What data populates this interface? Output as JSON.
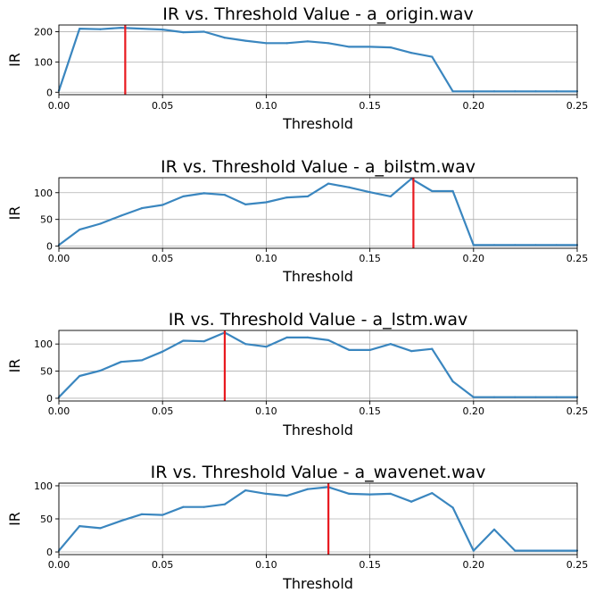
{
  "chart_data": [
    {
      "type": "line",
      "title": "IR vs. Threshold Value - a_origin.wav",
      "xlabel": "Threshold",
      "ylabel": "IR",
      "xlim": [
        0,
        0.25
      ],
      "ylim": [
        -8,
        222
      ],
      "xticks": [
        0.0,
        0.05,
        0.1,
        0.15,
        0.2,
        0.25
      ],
      "xtick_labels": [
        "0.00",
        "0.05",
        "0.10",
        "0.15",
        "0.20",
        "0.25"
      ],
      "yticks": [
        0,
        100,
        200
      ],
      "ytick_labels": [
        "0",
        "100",
        "200"
      ],
      "grid": true,
      "line_color": "#3a86bf",
      "marker_color": "#e8191f",
      "marker_x": 0.032,
      "x": [
        0,
        0.01,
        0.02,
        0.03,
        0.04,
        0.05,
        0.06,
        0.07,
        0.08,
        0.09,
        0.1,
        0.11,
        0.12,
        0.13,
        0.14,
        0.15,
        0.16,
        0.17,
        0.18,
        0.19,
        0.2,
        0.21,
        0.22,
        0.23,
        0.24,
        0.25
      ],
      "y": [
        5,
        210,
        208,
        213,
        210,
        207,
        198,
        200,
        180,
        170,
        162,
        162,
        168,
        162,
        150,
        150,
        148,
        130,
        117,
        3,
        3,
        3,
        3,
        3,
        3,
        3
      ]
    },
    {
      "type": "line",
      "title": "IR vs. Threshold Value - a_bilstm.wav",
      "xlabel": "Threshold",
      "ylabel": "IR",
      "xlim": [
        0,
        0.25
      ],
      "ylim": [
        -4,
        128
      ],
      "xticks": [
        0.0,
        0.05,
        0.1,
        0.15,
        0.2,
        0.25
      ],
      "xtick_labels": [
        "0.00",
        "0.05",
        "0.10",
        "0.15",
        "0.20",
        "0.25"
      ],
      "yticks": [
        0,
        50,
        100
      ],
      "ytick_labels": [
        "0",
        "50",
        "100"
      ],
      "grid": true,
      "line_color": "#3a86bf",
      "marker_color": "#e8191f",
      "marker_x": 0.171,
      "x": [
        0,
        0.01,
        0.02,
        0.03,
        0.04,
        0.05,
        0.06,
        0.07,
        0.08,
        0.09,
        0.1,
        0.11,
        0.12,
        0.13,
        0.14,
        0.15,
        0.16,
        0.17,
        0.18,
        0.19,
        0.2,
        0.21,
        0.22,
        0.23,
        0.24,
        0.25
      ],
      "y": [
        2,
        31,
        42,
        57,
        71,
        77,
        93,
        99,
        96,
        78,
        82,
        91,
        93,
        117,
        110,
        101,
        93,
        126,
        103,
        103,
        2,
        2,
        2,
        2,
        2,
        2
      ]
    },
    {
      "type": "line",
      "title": "IR vs. Threshold Value - a_lstm.wav",
      "xlabel": "Threshold",
      "ylabel": "IR",
      "xlim": [
        0,
        0.25
      ],
      "ylim": [
        -5,
        125
      ],
      "xticks": [
        0.0,
        0.05,
        0.1,
        0.15,
        0.2,
        0.25
      ],
      "xtick_labels": [
        "0.00",
        "0.05",
        "0.10",
        "0.15",
        "0.20",
        "0.25"
      ],
      "yticks": [
        0,
        50,
        100
      ],
      "ytick_labels": [
        "0",
        "50",
        "100"
      ],
      "grid": true,
      "line_color": "#3a86bf",
      "marker_color": "#e8191f",
      "marker_x": 0.08,
      "x": [
        0,
        0.01,
        0.02,
        0.03,
        0.04,
        0.05,
        0.06,
        0.07,
        0.08,
        0.09,
        0.1,
        0.11,
        0.12,
        0.13,
        0.14,
        0.15,
        0.16,
        0.17,
        0.18,
        0.19,
        0.2,
        0.21,
        0.22,
        0.23,
        0.24,
        0.25
      ],
      "y": [
        2,
        41,
        51,
        67,
        70,
        86,
        106,
        105,
        121,
        100,
        95,
        112,
        112,
        107,
        89,
        89,
        100,
        87,
        91,
        31,
        2,
        2,
        2,
        2,
        2,
        2
      ]
    },
    {
      "type": "line",
      "title": "IR vs. Threshold Value - a_wavenet.wav",
      "xlabel": "Threshold",
      "ylabel": "IR",
      "xlim": [
        0,
        0.25
      ],
      "ylim": [
        -4,
        104
      ],
      "xticks": [
        0.0,
        0.05,
        0.1,
        0.15,
        0.2,
        0.25
      ],
      "xtick_labels": [
        "0.00",
        "0.05",
        "0.10",
        "0.15",
        "0.20",
        "0.25"
      ],
      "yticks": [
        0,
        50,
        100
      ],
      "ytick_labels": [
        "0",
        "50",
        "100"
      ],
      "grid": true,
      "line_color": "#3a86bf",
      "marker_color": "#e8191f",
      "marker_x": 0.13,
      "x": [
        0,
        0.01,
        0.02,
        0.03,
        0.04,
        0.05,
        0.06,
        0.07,
        0.08,
        0.09,
        0.1,
        0.11,
        0.12,
        0.13,
        0.14,
        0.15,
        0.16,
        0.17,
        0.18,
        0.19,
        0.2,
        0.21,
        0.22,
        0.23,
        0.24,
        0.25
      ],
      "y": [
        2,
        39,
        36,
        47,
        57,
        56,
        68,
        68,
        72,
        93,
        88,
        85,
        95,
        98,
        88,
        87,
        88,
        76,
        89,
        67,
        2,
        34,
        2,
        2,
        2,
        2
      ]
    }
  ]
}
